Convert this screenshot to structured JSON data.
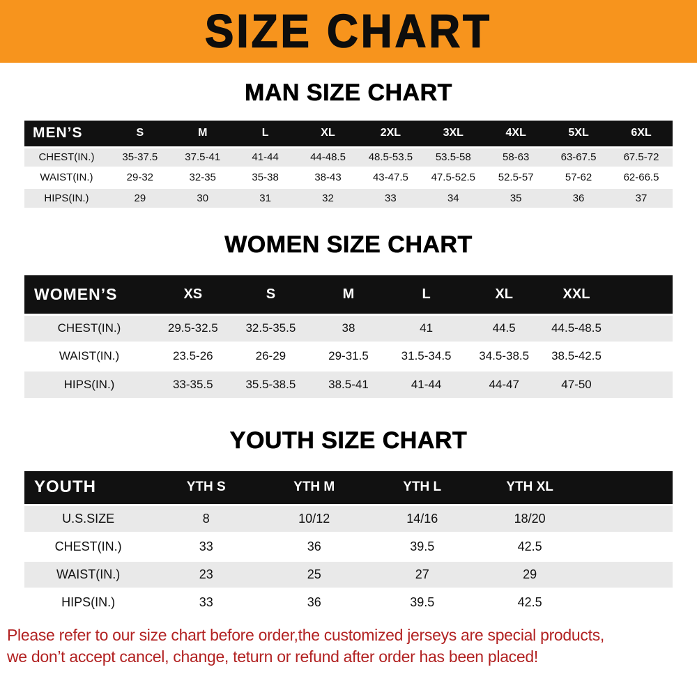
{
  "banner": {
    "title": "SIZE CHART"
  },
  "sections": [
    {
      "id": "men",
      "title": "MAN SIZE CHART",
      "header": [
        "MEN’S",
        "S",
        "M",
        "L",
        "XL",
        "2XL",
        "3XL",
        "4XL",
        "5XL",
        "6XL"
      ],
      "rows": [
        [
          "CHEST(IN.)",
          "35-37.5",
          "37.5-41",
          "41-44",
          "44-48.5",
          "48.5-53.5",
          "53.5-58",
          "58-63",
          "63-67.5",
          "67.5-72"
        ],
        [
          "WAIST(IN.)",
          "29-32",
          "32-35",
          "35-38",
          "38-43",
          "43-47.5",
          "47.5-52.5",
          "52.5-57",
          "57-62",
          "62-66.5"
        ],
        [
          "HIPS(IN.)",
          "29",
          "30",
          "31",
          "32",
          "33",
          "34",
          "35",
          "36",
          "37"
        ]
      ]
    },
    {
      "id": "women",
      "title": "WOMEN SIZE CHART",
      "header": [
        "WOMEN’S",
        "XS",
        "S",
        "M",
        "L",
        "XL",
        "XXL"
      ],
      "rows": [
        [
          "CHEST(IN.)",
          "29.5-32.5",
          "32.5-35.5",
          "38",
          "41",
          "44.5",
          "44.5-48.5"
        ],
        [
          "WAIST(IN.)",
          "23.5-26",
          "26-29",
          "29-31.5",
          "31.5-34.5",
          "34.5-38.5",
          "38.5-42.5"
        ],
        [
          "HIPS(IN.)",
          "33-35.5",
          "35.5-38.5",
          "38.5-41",
          "41-44",
          "44-47",
          "47-50"
        ]
      ]
    },
    {
      "id": "youth",
      "title": "YOUTH SIZE CHART",
      "header": [
        "YOUTH",
        "YTH S",
        "YTH M",
        "YTH L",
        "YTH XL"
      ],
      "rows": [
        [
          "U.S.SIZE",
          "8",
          "10/12",
          "14/16",
          "18/20"
        ],
        [
          "CHEST(IN.)",
          "33",
          "36",
          "39.5",
          "42.5"
        ],
        [
          "WAIST(IN.)",
          "23",
          "25",
          "27",
          "29"
        ],
        [
          "HIPS(IN.)",
          "33",
          "36",
          "39.5",
          "42.5"
        ]
      ]
    }
  ],
  "footer": {
    "line1": "Please refer to our size chart before order,the customized jerseys are special products,",
    "line2": "we don’t accept cancel, change, teturn or refund after order has been placed!",
    "color": "#B22222"
  },
  "colors": {
    "banner_bg": "#F7941D",
    "header_row_bg": "#111111",
    "shaded_row_bg": "#E9E9E9"
  }
}
